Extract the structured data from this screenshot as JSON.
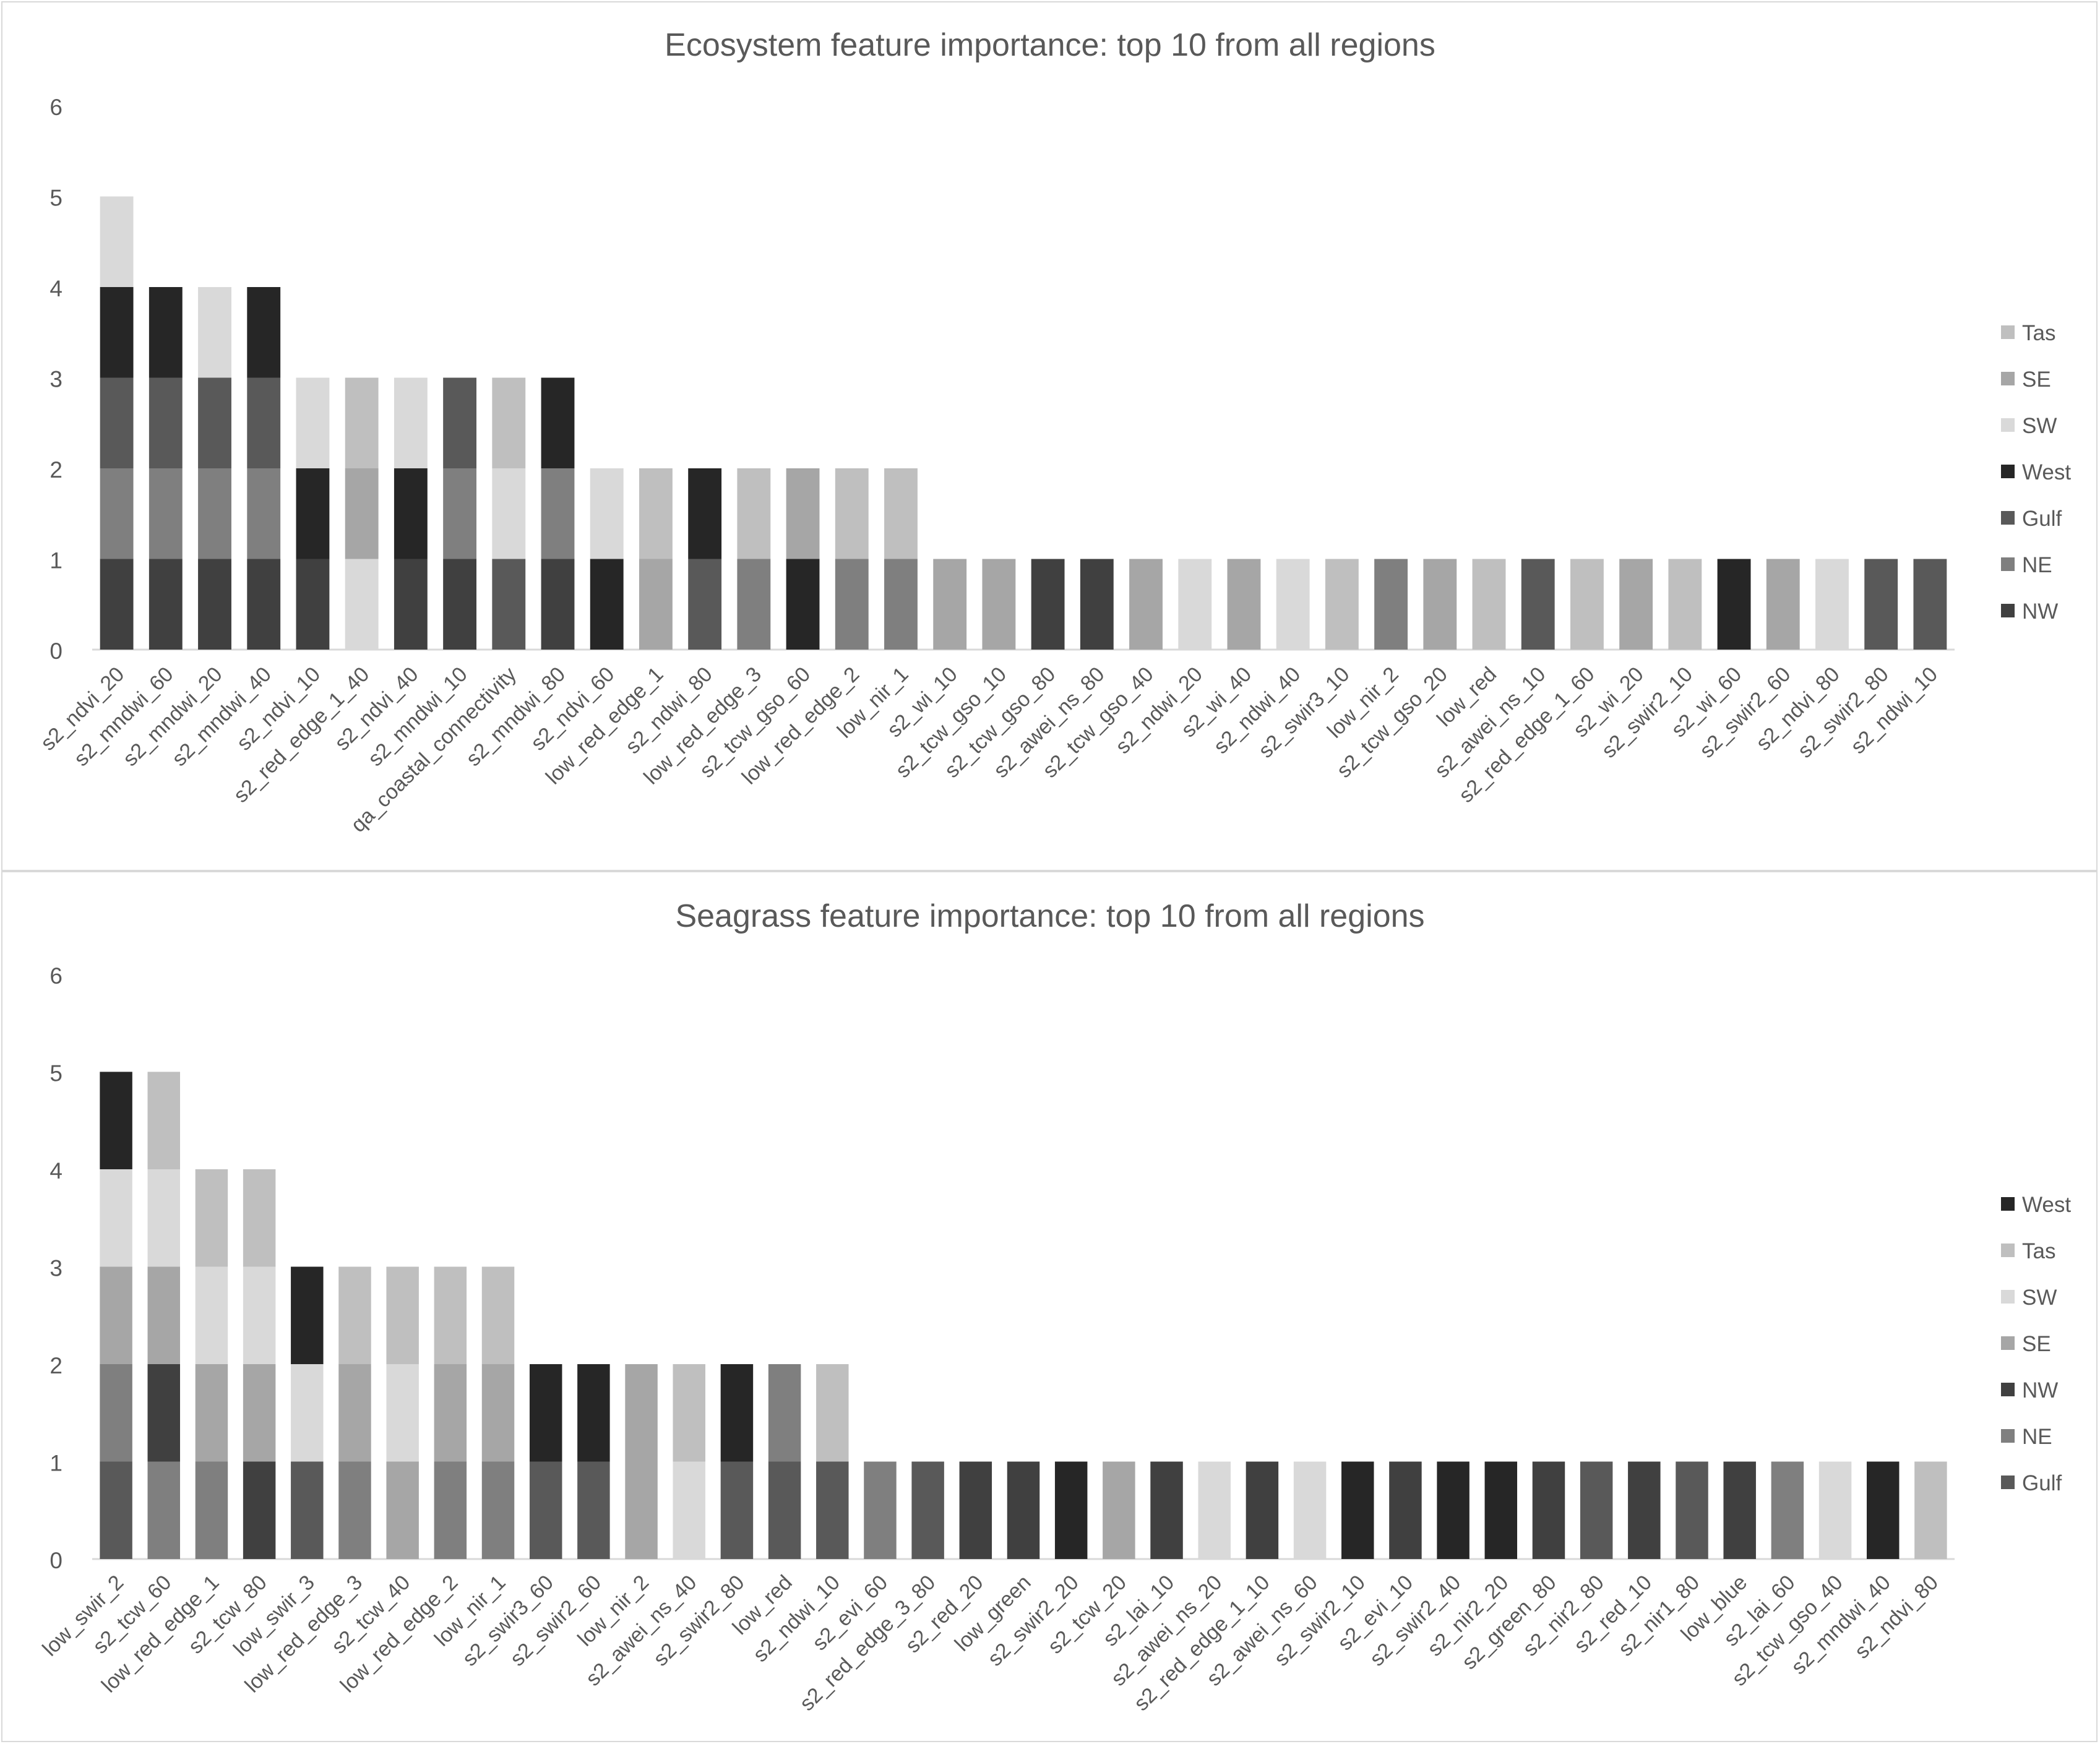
{
  "chart_data": [
    {
      "type": "bar",
      "stacked": true,
      "title": "Ecosystem feature importance: top 10 from all regions",
      "xlabel": "",
      "ylabel": "",
      "ylim": [
        0,
        6
      ],
      "yticks": [
        "0",
        "1",
        "2",
        "3",
        "4",
        "5",
        "6"
      ],
      "legend_position": "right",
      "grid": false,
      "categories": [
        "s2_ndvi_20",
        "s2_mndwi_60",
        "s2_mndwi_20",
        "s2_mndwi_40",
        "s2_ndvi_10",
        "s2_red_edge_1_40",
        "s2_ndvi_40",
        "s2_mndwi_10",
        "qa_coastal_connectivity",
        "s2_mndwi_80",
        "s2_ndvi_60",
        "low_red_edge_1",
        "s2_ndwi_80",
        "low_red_edge_3",
        "s2_tcw_gso_60",
        "low_red_edge_2",
        "low_nir_1",
        "s2_wi_10",
        "s2_tcw_gso_10",
        "s2_tcw_gso_80",
        "s2_awei_ns_80",
        "s2_tcw_gso_40",
        "s2_ndwi_20",
        "s2_wi_40",
        "s2_ndwi_40",
        "s2_swir3_10",
        "low_nir_2",
        "s2_tcw_gso_20",
        "low_red",
        "s2_awei_ns_10",
        "s2_red_edge_1_60",
        "s2_wi_20",
        "s2_swir2_10",
        "s2_wi_60",
        "s2_swir2_60",
        "s2_ndvi_80",
        "s2_swir2_80",
        "s2_ndwi_10"
      ],
      "legend": [
        "Tas",
        "SE",
        "SW",
        "West",
        "Gulf",
        "NE",
        "NW"
      ],
      "stack_order": [
        "NW",
        "NE",
        "Gulf",
        "West",
        "SW",
        "SE",
        "Tas"
      ],
      "series_colors": {
        "NW": "#404040",
        "NE": "#7f7f7f",
        "Gulf": "#595959",
        "West": "#262626",
        "SW": "#d9d9d9",
        "SE": "#a6a6a6",
        "Tas": "#bfbfbf"
      },
      "series": [
        {
          "name": "NW",
          "values": [
            1,
            1,
            1,
            1,
            1,
            0,
            1,
            1,
            0,
            1,
            0,
            0,
            0,
            0,
            0,
            0,
            0,
            0,
            0,
            1,
            1,
            0,
            0,
            0,
            0,
            0,
            0,
            0,
            0,
            0,
            0,
            0,
            0,
            0,
            0,
            0,
            0,
            0
          ]
        },
        {
          "name": "NE",
          "values": [
            1,
            1,
            1,
            1,
            0,
            0,
            0,
            1,
            0,
            1,
            0,
            0,
            0,
            1,
            0,
            1,
            1,
            0,
            0,
            0,
            0,
            0,
            0,
            0,
            0,
            0,
            1,
            0,
            0,
            0,
            0,
            0,
            0,
            0,
            0,
            0,
            0,
            0
          ]
        },
        {
          "name": "Gulf",
          "values": [
            1,
            1,
            1,
            1,
            0,
            0,
            0,
            1,
            1,
            0,
            0,
            0,
            1,
            0,
            0,
            0,
            0,
            0,
            0,
            0,
            0,
            0,
            0,
            0,
            0,
            0,
            0,
            0,
            0,
            1,
            0,
            0,
            0,
            0,
            0,
            0,
            1,
            1
          ]
        },
        {
          "name": "West",
          "values": [
            1,
            1,
            0,
            1,
            1,
            0,
            1,
            0,
            0,
            1,
            1,
            0,
            1,
            0,
            1,
            0,
            0,
            0,
            0,
            0,
            0,
            0,
            0,
            0,
            0,
            0,
            0,
            0,
            0,
            0,
            0,
            0,
            0,
            1,
            0,
            0,
            0,
            0
          ]
        },
        {
          "name": "SW",
          "values": [
            1,
            0,
            1,
            0,
            1,
            1,
            1,
            0,
            1,
            0,
            1,
            0,
            0,
            0,
            0,
            0,
            0,
            0,
            0,
            0,
            0,
            0,
            1,
            0,
            1,
            0,
            0,
            0,
            0,
            0,
            0,
            0,
            0,
            0,
            0,
            1,
            0,
            0
          ]
        },
        {
          "name": "SE",
          "values": [
            0,
            0,
            0,
            0,
            0,
            1,
            0,
            0,
            0,
            0,
            0,
            1,
            0,
            0,
            1,
            0,
            0,
            1,
            1,
            0,
            0,
            1,
            0,
            1,
            0,
            0,
            0,
            1,
            0,
            0,
            0,
            1,
            0,
            0,
            1,
            0,
            0,
            0
          ]
        },
        {
          "name": "Tas",
          "values": [
            0,
            0,
            0,
            0,
            0,
            1,
            0,
            0,
            1,
            0,
            0,
            1,
            0,
            1,
            0,
            1,
            1,
            0,
            0,
            0,
            0,
            0,
            0,
            0,
            0,
            1,
            0,
            0,
            1,
            0,
            1,
            0,
            1,
            0,
            0,
            0,
            0,
            0
          ]
        }
      ]
    },
    {
      "type": "bar",
      "stacked": true,
      "title": "Seagrass feature importance: top 10 from all regions",
      "xlabel": "",
      "ylabel": "",
      "ylim": [
        0,
        6
      ],
      "yticks": [
        "0",
        "1",
        "2",
        "3",
        "4",
        "5",
        "6"
      ],
      "legend_position": "right",
      "grid": false,
      "categories": [
        "low_swir_2",
        "s2_tcw_60",
        "low_red_edge_1",
        "s2_tcw_80",
        "low_swir_3",
        "low_red_edge_3",
        "s2_tcw_40",
        "low_red_edge_2",
        "low_nir_1",
        "s2_swir3_60",
        "s2_swir2_60",
        "low_nir_2",
        "s2_awei_ns_40",
        "s2_swir2_80",
        "low_red",
        "s2_ndwi_10",
        "s2_evi_60",
        "s2_red_edge_3_80",
        "s2_red_20",
        "low_green",
        "s2_swir2_20",
        "s2_tcw_20",
        "s2_lai_10",
        "s2_awei_ns_20",
        "s2_red_edge_1_10",
        "s2_awei_ns_60",
        "s2_swir2_10",
        "s2_evi_10",
        "s2_swir2_40",
        "s2_nir2_20",
        "s2_green_80",
        "s2_nir2_80",
        "s2_red_10",
        "s2_nir1_80",
        "low_blue",
        "s2_lai_60",
        "s2_tcw_gso_40",
        "s2_mndwi_40",
        "s2_ndvi_80"
      ],
      "legend": [
        "West",
        "Tas",
        "SW",
        "SE",
        "NW",
        "NE",
        "Gulf"
      ],
      "stack_order": [
        "Gulf",
        "NE",
        "NW",
        "SE",
        "SW",
        "Tas",
        "West"
      ],
      "series_colors": {
        "Gulf": "#595959",
        "NE": "#7f7f7f",
        "NW": "#404040",
        "SE": "#a6a6a6",
        "SW": "#d9d9d9",
        "Tas": "#bfbfbf",
        "West": "#262626"
      },
      "series": [
        {
          "name": "Gulf",
          "values": [
            1,
            0,
            0,
            0,
            1,
            0,
            0,
            0,
            0,
            1,
            1,
            0,
            0,
            1,
            1,
            1,
            0,
            1,
            0,
            0,
            0,
            0,
            0,
            0,
            0,
            0,
            0,
            0,
            0,
            0,
            0,
            1,
            0,
            1,
            0,
            0,
            0,
            0,
            0
          ]
        },
        {
          "name": "NE",
          "values": [
            1,
            1,
            1,
            0,
            0,
            1,
            0,
            1,
            1,
            0,
            0,
            0,
            0,
            0,
            1,
            0,
            1,
            0,
            0,
            0,
            0,
            0,
            0,
            0,
            0,
            0,
            0,
            0,
            0,
            0,
            0,
            0,
            0,
            0,
            0,
            1,
            0,
            0,
            0
          ]
        },
        {
          "name": "NW",
          "values": [
            0,
            1,
            0,
            1,
            0,
            0,
            0,
            0,
            0,
            0,
            0,
            0,
            0,
            0,
            0,
            0,
            0,
            0,
            1,
            1,
            0,
            0,
            1,
            0,
            1,
            0,
            0,
            1,
            0,
            0,
            1,
            0,
            1,
            0,
            1,
            0,
            0,
            0,
            0
          ]
        },
        {
          "name": "SE",
          "values": [
            1,
            1,
            1,
            1,
            0,
            1,
            1,
            1,
            1,
            0,
            0,
            2,
            0,
            0,
            0,
            0,
            0,
            0,
            0,
            0,
            0,
            1,
            0,
            0,
            0,
            0,
            0,
            0,
            0,
            0,
            0,
            0,
            0,
            0,
            0,
            0,
            0,
            0,
            0
          ]
        },
        {
          "name": "SW",
          "values": [
            1,
            1,
            1,
            1,
            1,
            0,
            1,
            0,
            0,
            0,
            0,
            0,
            1,
            0,
            0,
            0,
            0,
            0,
            0,
            0,
            0,
            0,
            0,
            1,
            0,
            1,
            0,
            0,
            0,
            0,
            0,
            0,
            0,
            0,
            0,
            0,
            1,
            0,
            0
          ]
        },
        {
          "name": "Tas",
          "values": [
            0,
            1,
            1,
            1,
            0,
            1,
            1,
            1,
            1,
            0,
            0,
            0,
            1,
            0,
            0,
            1,
            0,
            0,
            0,
            0,
            0,
            0,
            0,
            0,
            0,
            0,
            0,
            0,
            0,
            0,
            0,
            0,
            0,
            0,
            0,
            0,
            0,
            0,
            1
          ]
        },
        {
          "name": "West",
          "values": [
            1,
            0,
            0,
            0,
            1,
            0,
            0,
            0,
            0,
            1,
            1,
            0,
            0,
            1,
            0,
            0,
            0,
            0,
            0,
            0,
            1,
            0,
            0,
            0,
            0,
            0,
            1,
            0,
            1,
            1,
            0,
            0,
            0,
            0,
            0,
            0,
            0,
            1,
            0
          ]
        }
      ]
    }
  ]
}
